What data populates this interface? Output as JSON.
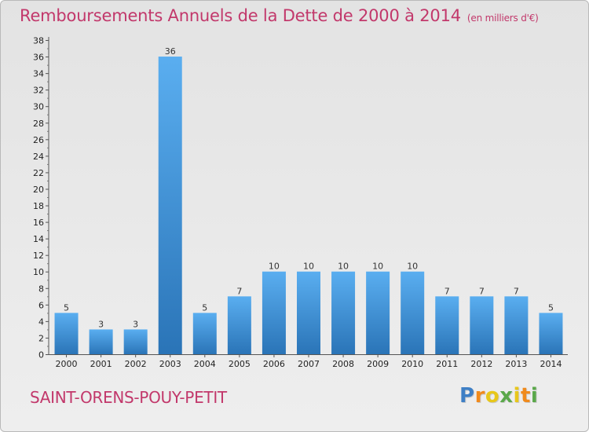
{
  "header": {
    "title": "Remboursements Annuels de la Dette de 2000 à 2014",
    "unit": "(en milliers d'€)"
  },
  "footer": {
    "commune": "SAINT-ORENS-POUY-PETIT",
    "logo_letters": [
      "P",
      "r",
      "o",
      "x",
      "i",
      "t",
      "i"
    ]
  },
  "colors": {
    "title": "#c2386b",
    "bar_top": "#5aaef0",
    "bar_bottom": "#2a74b7",
    "logo": [
      "#3e7fc5",
      "#f08a1c",
      "#e8c71a",
      "#5aa84a"
    ]
  },
  "chart_data": {
    "type": "bar",
    "title": "Remboursements Annuels de la Dette de 2000 à 2014",
    "xlabel": "",
    "ylabel": "",
    "categories": [
      "2000",
      "2001",
      "2002",
      "2003",
      "2004",
      "2005",
      "2006",
      "2007",
      "2008",
      "2009",
      "2010",
      "2011",
      "2012",
      "2013",
      "2014"
    ],
    "values": [
      5,
      3,
      3,
      36,
      5,
      7,
      10,
      10,
      10,
      10,
      10,
      7,
      7,
      7,
      5
    ],
    "ylim": [
      0,
      38
    ],
    "yticks": [
      0,
      2,
      4,
      6,
      8,
      10,
      12,
      14,
      16,
      18,
      20,
      22,
      24,
      26,
      28,
      30,
      32,
      34,
      36,
      38
    ],
    "grid": false,
    "data_labels": true
  }
}
